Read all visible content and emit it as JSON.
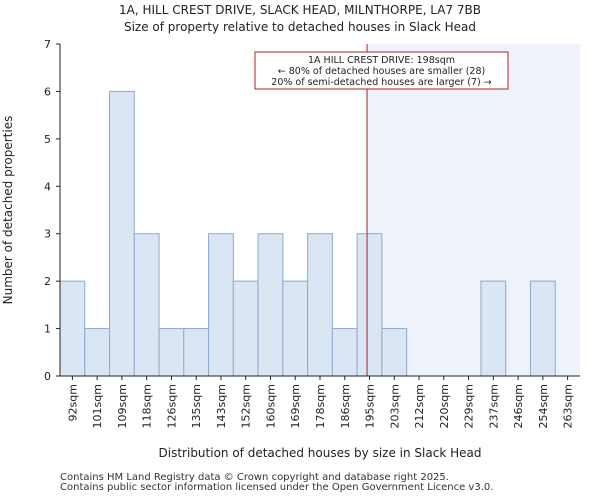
{
  "chart_data": {
    "type": "bar",
    "title": "1A, HILL CREST DRIVE, SLACK HEAD, MILNTHORPE, LA7 7BB",
    "subtitle": "Size of property relative to detached houses in Slack Head",
    "xlabel": "Distribution of detached houses by size in Slack Head",
    "ylabel": "Number of detached properties",
    "categories": [
      "92sqm",
      "101sqm",
      "109sqm",
      "118sqm",
      "126sqm",
      "135sqm",
      "143sqm",
      "152sqm",
      "160sqm",
      "169sqm",
      "178sqm",
      "186sqm",
      "195sqm",
      "203sqm",
      "212sqm",
      "220sqm",
      "229sqm",
      "237sqm",
      "246sqm",
      "254sqm",
      "263sqm"
    ],
    "values": [
      2,
      1,
      6,
      3,
      1,
      1,
      3,
      2,
      3,
      2,
      3,
      1,
      3,
      1,
      0,
      0,
      0,
      2,
      0,
      2,
      0
    ],
    "ylim": [
      0,
      7
    ],
    "yticks": [
      0,
      1,
      2,
      3,
      4,
      5,
      6,
      7
    ],
    "marker": {
      "value_index": 12.4,
      "label": "198sqm"
    },
    "annotation": {
      "line1": "1A HILL CREST DRIVE: 198sqm",
      "line2": "← 80% of detached houses are smaller (28)",
      "line3": "20% of semi-detached houses are larger (7) →"
    },
    "colors": {
      "bar_fill": "#dbe6f5",
      "bar_stroke": "#8fa8cc",
      "highlight": "#eef2fb",
      "marker": "#b22222",
      "axis": "#222222"
    }
  },
  "credits": {
    "line1": "Contains HM Land Registry data © Crown copyright and database right 2025.",
    "line2": "Contains public sector information licensed under the Open Government Licence v3.0."
  }
}
